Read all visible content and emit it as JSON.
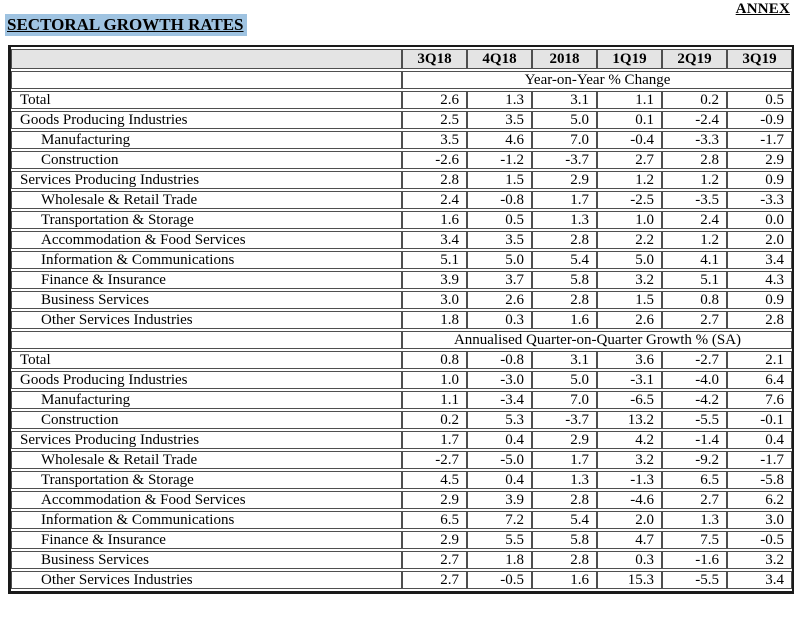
{
  "page": {
    "annex_label": "ANNEX",
    "title": "SECTORAL GROWTH RATES"
  },
  "colors": {
    "title_highlight": "#9FC3E1",
    "header_bg": "#E4E4E4",
    "cell_border": "#4F4F4F",
    "outer_border": "#1A1A1A"
  },
  "table": {
    "columns": [
      "3Q18",
      "4Q18",
      "2018",
      "1Q19",
      "2Q19",
      "3Q19"
    ],
    "sections": [
      {
        "header": "Year-on-Year % Change",
        "rows": [
          {
            "label": "Total",
            "indent": false,
            "values": [
              "2.6",
              "1.3",
              "3.1",
              "1.1",
              "0.2",
              "0.5"
            ]
          },
          {
            "label": "Goods Producing Industries",
            "indent": false,
            "values": [
              "2.5",
              "3.5",
              "5.0",
              "0.1",
              "-2.4",
              "-0.9"
            ]
          },
          {
            "label": "Manufacturing",
            "indent": true,
            "values": [
              "3.5",
              "4.6",
              "7.0",
              "-0.4",
              "-3.3",
              "-1.7"
            ]
          },
          {
            "label": "Construction",
            "indent": true,
            "values": [
              "-2.6",
              "-1.2",
              "-3.7",
              "2.7",
              "2.8",
              "2.9"
            ]
          },
          {
            "label": "Services Producing Industries",
            "indent": false,
            "values": [
              "2.8",
              "1.5",
              "2.9",
              "1.2",
              "1.2",
              "0.9"
            ]
          },
          {
            "label": "Wholesale & Retail Trade",
            "indent": true,
            "values": [
              "2.4",
              "-0.8",
              "1.7",
              "-2.5",
              "-3.5",
              "-3.3"
            ]
          },
          {
            "label": "Transportation & Storage",
            "indent": true,
            "values": [
              "1.6",
              "0.5",
              "1.3",
              "1.0",
              "2.4",
              "0.0"
            ]
          },
          {
            "label": "Accommodation & Food Services",
            "indent": true,
            "values": [
              "3.4",
              "3.5",
              "2.8",
              "2.2",
              "1.2",
              "2.0"
            ]
          },
          {
            "label": "Information & Communications",
            "indent": true,
            "values": [
              "5.1",
              "5.0",
              "5.4",
              "5.0",
              "4.1",
              "3.4"
            ]
          },
          {
            "label": "Finance & Insurance",
            "indent": true,
            "values": [
              "3.9",
              "3.7",
              "5.8",
              "3.2",
              "5.1",
              "4.3"
            ]
          },
          {
            "label": "Business Services",
            "indent": true,
            "values": [
              "3.0",
              "2.6",
              "2.8",
              "1.5",
              "0.8",
              "0.9"
            ]
          },
          {
            "label": "Other Services Industries",
            "indent": true,
            "values": [
              "1.8",
              "0.3",
              "1.6",
              "2.6",
              "2.7",
              "2.8"
            ]
          }
        ]
      },
      {
        "header": "Annualised Quarter-on-Quarter Growth % (SA)",
        "rows": [
          {
            "label": "Total",
            "indent": false,
            "values": [
              "0.8",
              "-0.8",
              "3.1",
              "3.6",
              "-2.7",
              "2.1"
            ]
          },
          {
            "label": "Goods Producing Industries",
            "indent": false,
            "values": [
              "1.0",
              "-3.0",
              "5.0",
              "-3.1",
              "-4.0",
              "6.4"
            ]
          },
          {
            "label": "Manufacturing",
            "indent": true,
            "values": [
              "1.1",
              "-3.4",
              "7.0",
              "-6.5",
              "-4.2",
              "7.6"
            ]
          },
          {
            "label": "Construction",
            "indent": true,
            "values": [
              "0.2",
              "5.3",
              "-3.7",
              "13.2",
              "-5.5",
              "-0.1"
            ]
          },
          {
            "label": "Services Producing Industries",
            "indent": false,
            "values": [
              "1.7",
              "0.4",
              "2.9",
              "4.2",
              "-1.4",
              "0.4"
            ]
          },
          {
            "label": "Wholesale & Retail Trade",
            "indent": true,
            "values": [
              "-2.7",
              "-5.0",
              "1.7",
              "3.2",
              "-9.2",
              "-1.7"
            ]
          },
          {
            "label": "Transportation & Storage",
            "indent": true,
            "values": [
              "4.5",
              "0.4",
              "1.3",
              "-1.3",
              "6.5",
              "-5.8"
            ]
          },
          {
            "label": "Accommodation & Food Services",
            "indent": true,
            "values": [
              "2.9",
              "3.9",
              "2.8",
              "-4.6",
              "2.7",
              "6.2"
            ]
          },
          {
            "label": "Information & Communications",
            "indent": true,
            "values": [
              "6.5",
              "7.2",
              "5.4",
              "2.0",
              "1.3",
              "3.0"
            ]
          },
          {
            "label": "Finance & Insurance",
            "indent": true,
            "values": [
              "2.9",
              "5.5",
              "5.8",
              "4.7",
              "7.5",
              "-0.5"
            ]
          },
          {
            "label": "Business Services",
            "indent": true,
            "values": [
              "2.7",
              "1.8",
              "2.8",
              "0.3",
              "-1.6",
              "3.2"
            ]
          },
          {
            "label": "Other Services Industries",
            "indent": true,
            "values": [
              "2.7",
              "-0.5",
              "1.6",
              "15.3",
              "-5.5",
              "3.4"
            ]
          }
        ]
      }
    ]
  }
}
